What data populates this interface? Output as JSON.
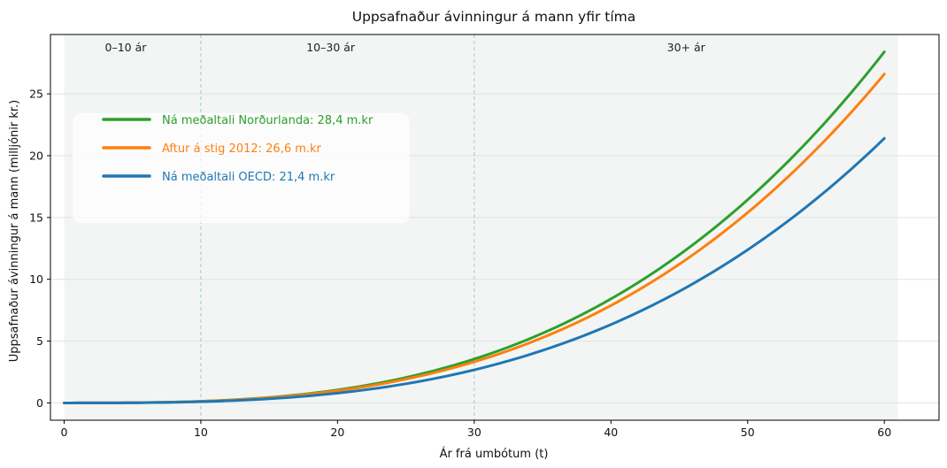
{
  "chart_data": {
    "type": "line",
    "title": "Uppsafnaður ávinningur á mann yfir tíma",
    "xlabel": "Ár frá umbótum (t)",
    "ylabel": "Uppsafnaður ávinningur á mann (milljónir kr.)",
    "xlim": [
      -1,
      64
    ],
    "ylim": [
      -1.4,
      29.8
    ],
    "x_ticks": [
      0,
      10,
      20,
      30,
      40,
      50,
      60
    ],
    "y_ticks": [
      0,
      5,
      10,
      15,
      20,
      25
    ],
    "grid": "horizontal",
    "legend_position": "upper-left",
    "phase_boundaries": [
      10,
      30
    ],
    "shaded_range": [
      0,
      61
    ],
    "phases": [
      {
        "label": "0–10 ár",
        "x": 4.5
      },
      {
        "label": "10–30 ár",
        "x": 19.5
      },
      {
        "label": "30+ ár",
        "x": 45.5
      }
    ],
    "series": [
      {
        "name": "Ná meðaltali Norðurlanda: 28,4 m.kr",
        "color": "#2ca02c",
        "final": 28.4,
        "x_end": 60
      },
      {
        "name": "Aftur á stig 2012: 26,6 m.kr",
        "color": "#ff7f0e",
        "final": 26.6,
        "x_end": 60
      },
      {
        "name": "Ná meðaltali OECD: 21,4 m.kr",
        "color": "#1f77b4",
        "final": 21.4,
        "x_end": 60
      }
    ]
  }
}
